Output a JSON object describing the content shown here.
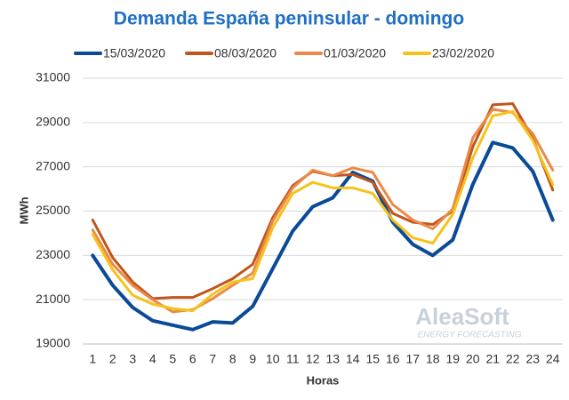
{
  "chart_data": {
    "type": "line",
    "title": "Demanda España peninsular - domingo",
    "x_label": "Horas",
    "y_label": "MWh",
    "categories": [
      "1",
      "2",
      "3",
      "4",
      "5",
      "6",
      "7",
      "8",
      "9",
      "10",
      "11",
      "12",
      "13",
      "14",
      "15",
      "16",
      "17",
      "18",
      "19",
      "20",
      "21",
      "22",
      "23",
      "24"
    ],
    "series": [
      {
        "name": "15/03/2020",
        "color": "#0b4a97",
        "values": [
          23000,
          21650,
          20650,
          20050,
          19850,
          19650,
          20000,
          19950,
          20700,
          22400,
          24100,
          25200,
          25600,
          26750,
          26350,
          24500,
          23500,
          23000,
          23700,
          26200,
          28100,
          27850,
          26800,
          24600
        ]
      },
      {
        "name": "08/03/2020",
        "color": "#c0561b",
        "values": [
          24600,
          22900,
          21800,
          21050,
          21100,
          21100,
          21500,
          21950,
          22600,
          24700,
          26150,
          26800,
          26600,
          26650,
          26300,
          24900,
          24500,
          24400,
          25000,
          27900,
          29800,
          29850,
          28300,
          25950
        ]
      },
      {
        "name": "01/03/2020",
        "color": "#eb8a48",
        "values": [
          24150,
          22600,
          21650,
          21000,
          20450,
          20550,
          21050,
          21650,
          22200,
          24550,
          26050,
          26850,
          26600,
          26950,
          26750,
          25300,
          24600,
          24200,
          25100,
          28300,
          29600,
          29450,
          28500,
          26850
        ]
      },
      {
        "name": "23/02/2020",
        "color": "#f6c21b",
        "values": [
          23950,
          22350,
          21200,
          20800,
          20600,
          20500,
          21250,
          21800,
          21950,
          24250,
          25800,
          26300,
          26050,
          26050,
          25800,
          24600,
          23800,
          23550,
          24850,
          27400,
          29300,
          29500,
          28200,
          26200
        ]
      }
    ],
    "ylim": [
      19000,
      31000
    ],
    "yticks": [
      19000,
      21000,
      23000,
      25000,
      27000,
      29000,
      31000
    ],
    "grid": true,
    "annotations": [
      "AleaSoft",
      "ENERGY FORECASTING"
    ]
  }
}
